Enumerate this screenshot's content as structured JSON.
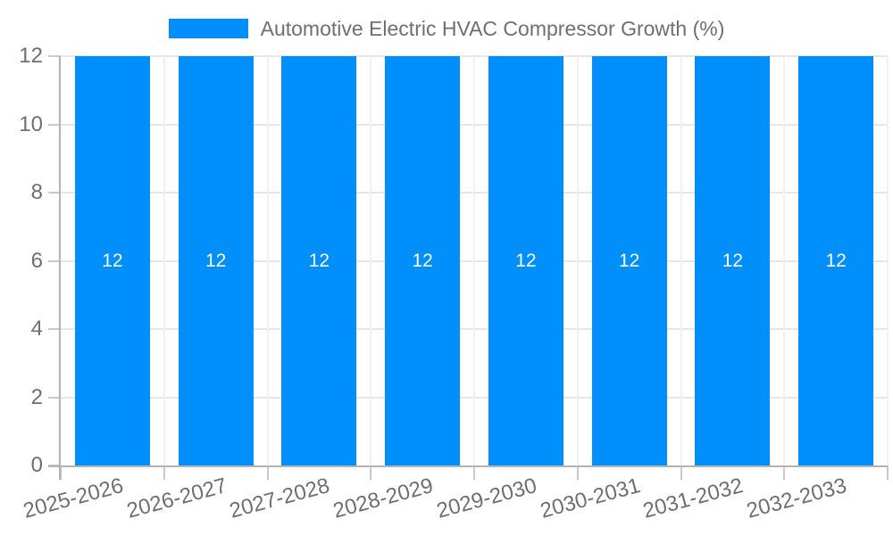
{
  "chart_data": {
    "type": "bar",
    "categories": [
      "2025-2026",
      "2026-2027",
      "2027-2028",
      "2028-2029",
      "2029-2030",
      "2030-2031",
      "2031-2032",
      "2032-2033"
    ],
    "series": [
      {
        "name": "Automotive Electric HVAC Compressor Growth (%)",
        "values": [
          12,
          12,
          12,
          12,
          12,
          12,
          12,
          12
        ]
      }
    ],
    "legend": {
      "label": "Automotive Electric HVAC Compressor Growth (%)",
      "position": "top-center"
    },
    "title": "Automotive Electric HVAC Compressor Growth (%)",
    "xlabel": "",
    "ylabel": "",
    "ylim": [
      0,
      12
    ],
    "yticks": [
      0,
      2,
      4,
      6,
      8,
      10,
      12
    ],
    "grid": true,
    "data_labels": true,
    "colors": {
      "bar": "#008FFB",
      "data_label": "#ffffff",
      "axis_text": "#6f6f6f",
      "legend_text": "#6f6f6f",
      "grid_horizontal": "#e6e6e6",
      "grid_vertical": "#f1f1f1",
      "axis_line": "#b3b3b3",
      "tick": "#c9c9c9"
    }
  }
}
